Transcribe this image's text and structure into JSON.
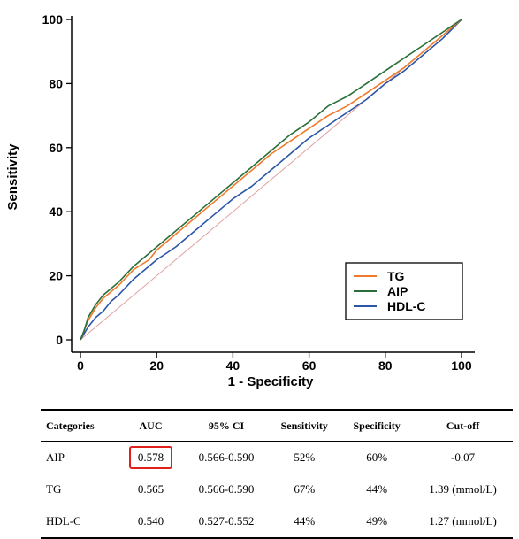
{
  "chart_data": {
    "type": "line",
    "xlabel": "1 - Specificity",
    "ylabel": "Sensitivity",
    "xlim": [
      0,
      100
    ],
    "ylim": [
      0,
      100
    ],
    "xticks": [
      "0",
      "20",
      "40",
      "60",
      "80",
      "100"
    ],
    "yticks": [
      "0",
      "20",
      "40",
      "60",
      "80",
      "100"
    ],
    "grid": false,
    "legend_position": "bottom-right",
    "series": [
      {
        "name": "TG",
        "color": "#f07a2a",
        "x": [
          0,
          1,
          2,
          4,
          6,
          8,
          10,
          14,
          18,
          20,
          25,
          30,
          35,
          40,
          45,
          50,
          55,
          60,
          65,
          70,
          75,
          80,
          85,
          90,
          95,
          100
        ],
        "y": [
          0,
          3,
          6,
          10,
          13,
          15,
          17,
          22,
          25,
          28,
          33,
          38,
          43,
          48,
          53,
          58,
          62,
          66,
          70,
          73,
          77,
          81,
          85,
          90,
          95,
          100
        ]
      },
      {
        "name": "AIP",
        "color": "#2a6e3a",
        "x": [
          0,
          1,
          2,
          4,
          6,
          8,
          10,
          14,
          18,
          20,
          25,
          30,
          35,
          40,
          45,
          50,
          55,
          60,
          65,
          70,
          75,
          80,
          85,
          90,
          95,
          100
        ],
        "y": [
          0,
          3,
          7,
          11,
          14,
          16,
          18,
          23,
          27,
          29,
          34,
          39,
          44,
          49,
          54,
          59,
          64,
          68,
          73,
          76,
          80,
          84,
          88,
          92,
          96,
          100
        ]
      },
      {
        "name": "HDL-C",
        "color": "#2b56a8",
        "x": [
          0,
          1,
          2,
          4,
          6,
          8,
          10,
          14,
          18,
          20,
          25,
          30,
          35,
          40,
          45,
          50,
          55,
          60,
          65,
          70,
          75,
          80,
          85,
          90,
          95,
          100
        ],
        "y": [
          0,
          2,
          4,
          7,
          9,
          12,
          14,
          19,
          23,
          25,
          29,
          34,
          39,
          44,
          48,
          53,
          58,
          63,
          67,
          71,
          75,
          80,
          84,
          89,
          94,
          100
        ]
      }
    ],
    "reference_line": {
      "x": [
        0,
        100
      ],
      "y": [
        0,
        100
      ],
      "color": "#e0a0a0"
    }
  },
  "table": {
    "headers": [
      "Categories",
      "AUC",
      "95% CI",
      "Sensitivity",
      "Specificity",
      "Cut-off"
    ],
    "rows": [
      {
        "category": "AIP",
        "auc": "0.578",
        "ci": "0.566-0.590",
        "sensitivity": "52%",
        "specificity": "60%",
        "cutoff": "-0.07"
      },
      {
        "category": "TG",
        "auc": "0.565",
        "ci": "0.566-0.590",
        "sensitivity": "67%",
        "specificity": "44%",
        "cutoff": "1.39 (mmol/L)"
      },
      {
        "category": "HDL-C",
        "auc": "0.540",
        "ci": "0.527-0.552",
        "sensitivity": "44%",
        "specificity": "49%",
        "cutoff": "1.27 (mmol/L)"
      }
    ],
    "highlight_color": "#e0201b"
  }
}
